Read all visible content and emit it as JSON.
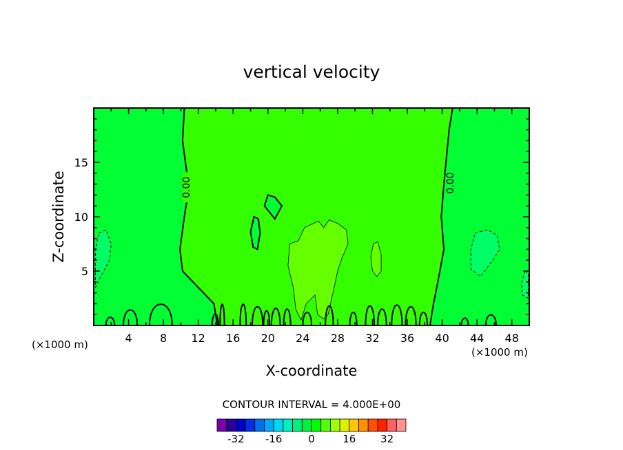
{
  "chart_data": {
    "type": "heatmap",
    "title": "vertical velocity",
    "xlabel": "X-coordinate",
    "ylabel": "Z-coordinate",
    "x_units": "(×1000 m)",
    "xlim": [
      0,
      50
    ],
    "ylim": [
      0,
      20
    ],
    "x_ticks": [
      4,
      8,
      12,
      16,
      20,
      24,
      28,
      32,
      36,
      40,
      44,
      48
    ],
    "y_ticks": [
      5,
      10,
      15
    ],
    "contour_labels": [
      "0.00",
      "0.00"
    ],
    "contour_interval_label": "CONTOUR INTERVAL = 4.000E+00",
    "colorbar": {
      "tick_labels": [
        "-32",
        "-16",
        "0",
        "16",
        "32"
      ],
      "tick_values": [
        -32,
        -16,
        0,
        16,
        32
      ],
      "range": [
        -40,
        40
      ],
      "colors": [
        "#7a00a8",
        "#2a009a",
        "#0000c8",
        "#0030e0",
        "#0070f0",
        "#00a8f8",
        "#00d8f0",
        "#00f0c0",
        "#00f080",
        "#00f040",
        "#00ff00",
        "#50ff00",
        "#a0ff00",
        "#e0f000",
        "#ffc800",
        "#ff9000",
        "#ff5000",
        "#ff2000",
        "#ff6060",
        "#ff9090"
      ]
    },
    "field_colors": {
      "zero_band": "#00ff33",
      "slightly_positive": "#33ff00",
      "positive": "#66ff00",
      "slightly_negative": "#00ff66"
    }
  }
}
